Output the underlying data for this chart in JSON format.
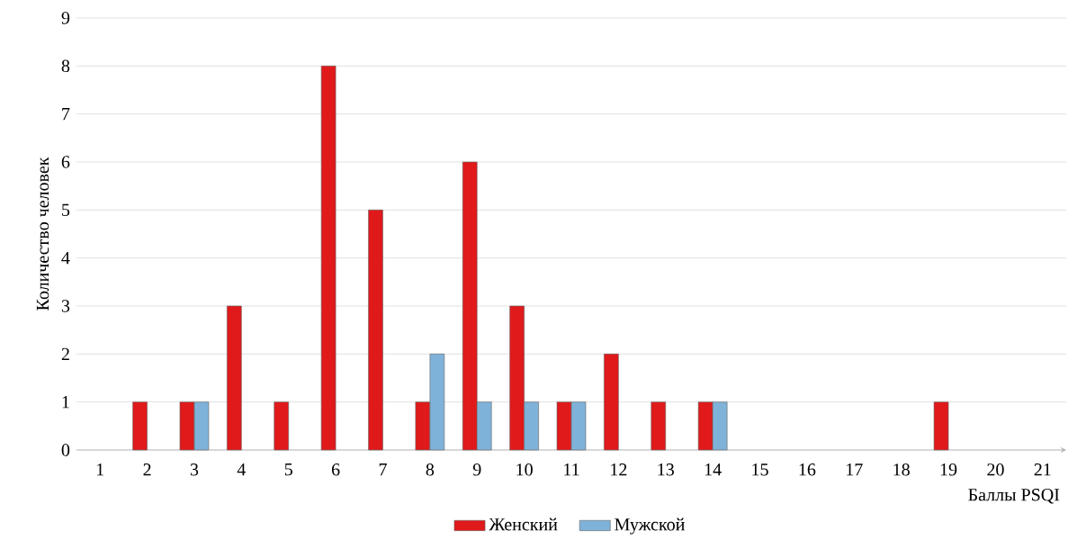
{
  "chart_data": {
    "type": "bar",
    "xlabel": "Баллы PSQI",
    "ylabel": "Количество человек",
    "categories": [
      "1",
      "2",
      "3",
      "4",
      "5",
      "6",
      "7",
      "8",
      "9",
      "10",
      "11",
      "12",
      "13",
      "14",
      "15",
      "16",
      "17",
      "18",
      "19",
      "20",
      "21"
    ],
    "series": [
      {
        "name": "Женский",
        "color": "#e0191b",
        "values": [
          null,
          1,
          1,
          3,
          1,
          8,
          5,
          1,
          6,
          3,
          1,
          2,
          1,
          1,
          null,
          null,
          null,
          null,
          1,
          null,
          null
        ]
      },
      {
        "name": "Мужской",
        "color": "#7fb2d8",
        "values": [
          null,
          null,
          1,
          null,
          null,
          null,
          null,
          2,
          1,
          1,
          1,
          null,
          null,
          1,
          null,
          null,
          null,
          null,
          null,
          null,
          null
        ]
      }
    ],
    "ylim": [
      0,
      9
    ],
    "yticks": [
      0,
      1,
      2,
      3,
      4,
      5,
      6,
      7,
      8,
      9
    ],
    "grid": "y",
    "legend": "bottom"
  }
}
